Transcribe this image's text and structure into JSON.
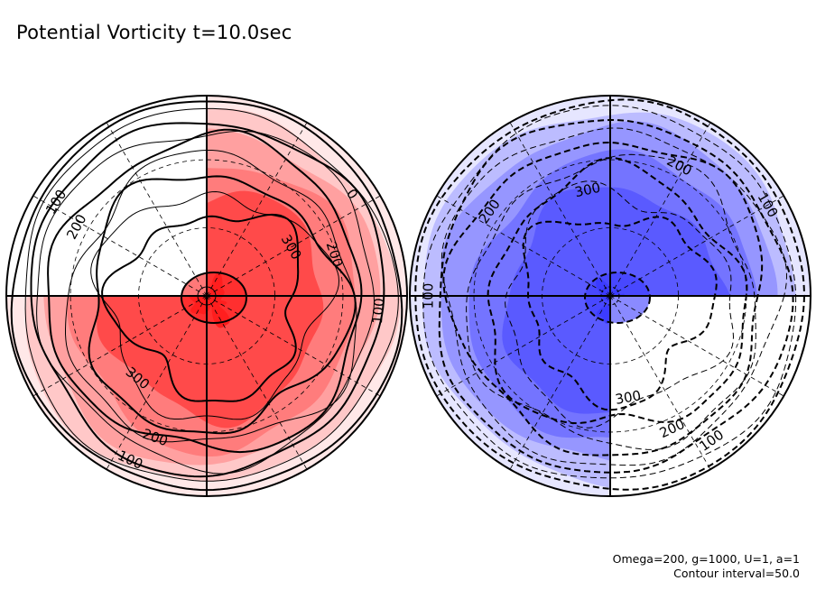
{
  "title": "Potential Vorticity t=10.0sec",
  "footer": {
    "params": "Omega=200, g=1000, U=1, a=1",
    "interval": "Contour interval=50.0"
  },
  "chart_data": [
    {
      "type": "heatmap",
      "projection": "polar",
      "hemisphere": "north",
      "variable": "Potential Vorticity",
      "sign": "positive",
      "line_style": "solid",
      "colormap": [
        "#ffe8e8",
        "#ffc8c8",
        "#ffa0a0",
        "#ff7c7c",
        "#ff4a4a",
        "#ff1e1e"
      ],
      "contour_levels": [
        0,
        50,
        100,
        150,
        200,
        250,
        300,
        350,
        400
      ],
      "contour_interval": 50,
      "labeled_contours": [
        {
          "text": "0",
          "lat": 8,
          "lon": 55
        },
        {
          "text": "100",
          "lat": 8,
          "lon": -58
        },
        {
          "text": "200",
          "lat": 22,
          "lon": -62
        },
        {
          "text": "300",
          "lat": 45,
          "lon": 60
        },
        {
          "text": "200",
          "lat": 28,
          "lon": 72
        },
        {
          "text": "100",
          "lat": 10,
          "lon": 95
        },
        {
          "text": "300",
          "lat": 40,
          "lon": -140
        },
        {
          "text": "200",
          "lat": 20,
          "lon": -160
        },
        {
          "text": "100",
          "lat": 6,
          "lon": -155
        }
      ],
      "shaded_quadrants": [
        "NE",
        "SE",
        "SW"
      ],
      "unshaded_quadrants": [
        "NW"
      ],
      "grid": true
    },
    {
      "type": "heatmap",
      "projection": "polar",
      "hemisphere": "south",
      "variable": "Potential Vorticity",
      "sign": "negative",
      "line_style": "dashed",
      "colormap": [
        "#e6e6ff",
        "#bcbcff",
        "#9696ff",
        "#7474ff",
        "#5a5aff",
        "#3c3cff"
      ],
      "contour_levels": [
        -400,
        -350,
        -300,
        -250,
        -200,
        -150,
        -100,
        -50,
        0
      ],
      "contour_interval": 50,
      "labeled_contours": [
        {
          "text": "200",
          "lat": 22,
          "lon": 28
        },
        {
          "text": "300",
          "lat": 40,
          "lon": -12
        },
        {
          "text": "100",
          "lat": 6,
          "lon": 60
        },
        {
          "text": "200",
          "lat": 22,
          "lon": -55
        },
        {
          "text": "100",
          "lat": 6,
          "lon": -90
        },
        {
          "text": "300",
          "lat": 42,
          "lon": 170
        },
        {
          "text": "200",
          "lat": 22,
          "lon": 155
        },
        {
          "text": "100",
          "lat": 8,
          "lon": 145
        }
      ],
      "shaded_quadrants": [
        "NE",
        "NW",
        "SW"
      ],
      "unshaded_quadrants": [
        "SE"
      ],
      "grid": true
    }
  ]
}
